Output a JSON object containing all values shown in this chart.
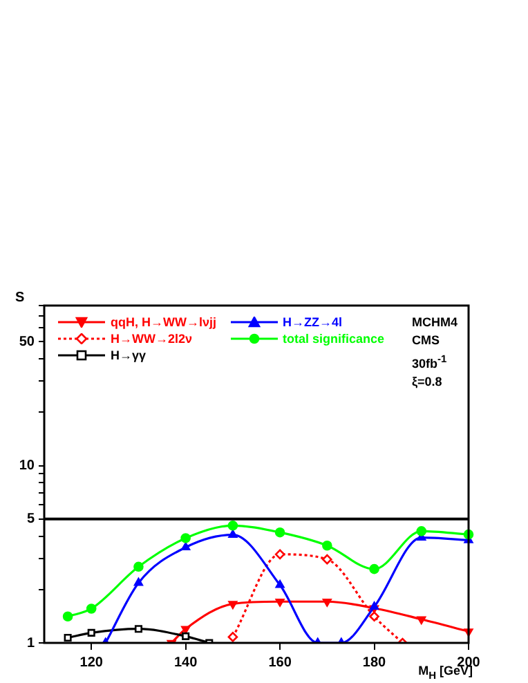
{
  "chart_data": {
    "type": "line",
    "ylabel": "S",
    "xlabel": "M$_{H}$ [GeV]",
    "log": "y",
    "grid": false,
    "legend": "top left",
    "xlim": [
      110,
      200
    ],
    "xticks": [
      120,
      140,
      160,
      180,
      200
    ],
    "ylim": [
      1,
      80
    ],
    "yticks": [
      1,
      {
        "value": 2,
        "label": null
      },
      {
        "value": 3,
        "label": null
      },
      {
        "value": 4,
        "label": null
      },
      5,
      {
        "value": 6,
        "label": null
      },
      {
        "value": 7,
        "label": null
      },
      {
        "value": 8,
        "label": null
      },
      {
        "value": 9,
        "label": null
      },
      10,
      {
        "value": 20,
        "label": null
      },
      {
        "value": 30,
        "label": null
      },
      {
        "value": 40,
        "label": null
      },
      50,
      {
        "value": 60,
        "label": null
      },
      {
        "value": 70,
        "label": null
      },
      {
        "value": 80,
        "label": null
      }
    ],
    "ref_lines": [
      {
        "axis": "y",
        "value": 5,
        "label": null,
        "color": "#000000"
      }
    ],
    "annotations": [
      "MCHM4",
      "CMS",
      "30fb$^{-1}$",
      "ξ=0.8"
    ],
    "series": [
      {
        "name": "qqH, H→WW→lνjj",
        "color": "#ff0000",
        "marker": "triangle-down",
        "line_style": "solid",
        "x": [
          137,
          140,
          150,
          160,
          170,
          180,
          190,
          200
        ],
        "values": [
          1,
          1.2,
          1.66,
          1.71,
          1.71,
          1.57,
          1.36,
          1.16
        ]
      },
      {
        "name": "H→WW→2l2ν",
        "color": "#ff0000",
        "marker": "diamond",
        "line_style": "dotted",
        "x": [
          150,
          160,
          170,
          180,
          186
        ],
        "values": [
          1.08,
          3.16,
          2.96,
          1.41,
          1
        ]
      },
      {
        "name": "H→γγ",
        "color": "#000000",
        "marker": "square",
        "line_style": "solid",
        "x": [
          115,
          120,
          130,
          140,
          145
        ],
        "values": [
          1.07,
          1.14,
          1.2,
          1.09,
          1
        ]
      },
      {
        "name": "H→ZZ→4l",
        "color": "#0000ff",
        "marker": "triangle",
        "line_style": "solid",
        "x": [
          123,
          130,
          140,
          150,
          160,
          168,
          173,
          180,
          190,
          200
        ],
        "values": [
          1,
          2.18,
          3.46,
          4.07,
          2.12,
          1,
          1,
          1.6,
          3.93,
          3.8
        ]
      },
      {
        "name": "total significance",
        "color": "#00ff00",
        "marker": "circle",
        "line_style": "solid",
        "x": [
          115,
          120,
          130,
          140,
          150,
          160,
          170,
          180,
          190,
          200
        ],
        "values": [
          1.41,
          1.56,
          2.69,
          3.9,
          4.59,
          4.2,
          3.54,
          2.61,
          4.27,
          4.09
        ]
      }
    ]
  }
}
